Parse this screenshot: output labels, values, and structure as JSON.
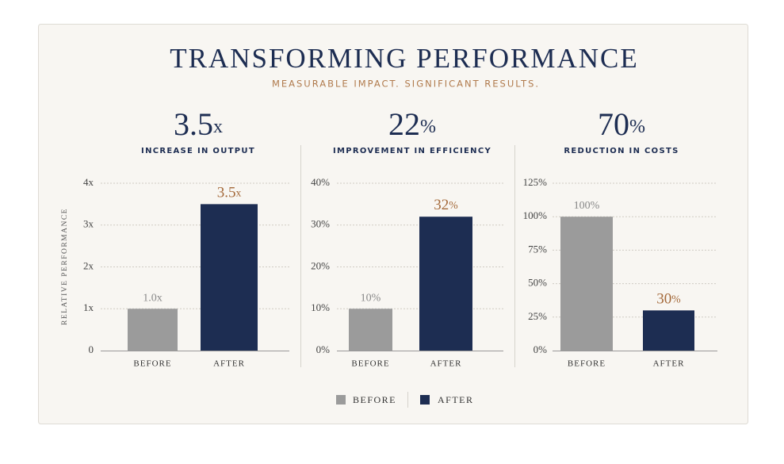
{
  "header": {
    "title": "TRANSFORMING PERFORMANCE",
    "subtitle": "MEASURABLE IMPACT. SIGNIFICANT RESULTS."
  },
  "legend": [
    {
      "name": "BEFORE",
      "color": "#9b9b9b"
    },
    {
      "name": "AFTER",
      "color": "#1d2d52"
    }
  ],
  "chart_data": [
    {
      "type": "bar",
      "headline": {
        "value": 3.5,
        "label": "3.5x"
      },
      "caption": "INCREASE IN OUTPUT",
      "ylabel": "RELATIVE PERFORMANCE",
      "categories": [
        "BEFORE",
        "AFTER"
      ],
      "values": [
        1.0,
        3.5
      ],
      "value_labels": [
        "1.0x",
        "3.5x"
      ],
      "colors": [
        "#9b9b9b",
        "#1d2d52"
      ],
      "ylim": [
        0,
        4
      ],
      "yticks": [
        0,
        {
          "value": 1,
          "label": "1x"
        },
        {
          "value": 2,
          "label": "2x"
        },
        {
          "value": 3,
          "label": "3x"
        },
        {
          "value": 4,
          "label": "4x"
        }
      ],
      "grid": true
    },
    {
      "type": "bar",
      "headline": {
        "value": 22,
        "label": "22%"
      },
      "caption": "IMPROVEMENT IN EFFICIENCY",
      "categories": [
        "BEFORE",
        "AFTER"
      ],
      "values": [
        10,
        32
      ],
      "value_labels": [
        "10%",
        "32%"
      ],
      "colors": [
        "#9b9b9b",
        "#1d2d52"
      ],
      "ylim": [
        0,
        40
      ],
      "yticks": [
        {
          "value": 0,
          "label": "0%"
        },
        {
          "value": 10,
          "label": "10%"
        },
        {
          "value": 20,
          "label": "20%"
        },
        {
          "value": 30,
          "label": "30%"
        },
        {
          "value": 40,
          "label": "40%"
        }
      ],
      "grid": true
    },
    {
      "type": "bar",
      "headline": {
        "value": 70,
        "label": "70%"
      },
      "caption": "REDUCTION IN COSTS",
      "categories": [
        "BEFORE",
        "AFTER"
      ],
      "values": [
        100,
        30
      ],
      "value_labels": [
        "100%",
        "30%"
      ],
      "colors": [
        "#9b9b9b",
        "#1d2d52"
      ],
      "ylim": [
        0,
        125
      ],
      "yticks": [
        {
          "value": 0,
          "label": "0%"
        },
        {
          "value": 25,
          "label": "25%"
        },
        {
          "value": 50,
          "label": "50%"
        },
        {
          "value": 75,
          "label": "75%"
        },
        {
          "value": 100,
          "label": "100%"
        },
        {
          "value": 125,
          "label": "125%"
        }
      ],
      "grid": true
    }
  ]
}
